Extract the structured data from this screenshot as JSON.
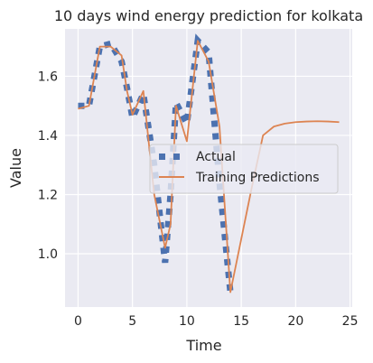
{
  "chart_data": {
    "type": "line",
    "title": "10 days wind energy prediction for kolkata",
    "xlabel": "Time",
    "ylabel": "Value",
    "xlim": [
      -1.2,
      25.2
    ],
    "ylim": [
      0.82,
      1.76
    ],
    "xticks": [
      0,
      5,
      10,
      15,
      20,
      25
    ],
    "yticks": [
      1.0,
      1.2,
      1.4,
      1.6
    ],
    "ytick_labels": [
      "1.0",
      "1.2",
      "1.4",
      "1.6"
    ],
    "grid": true,
    "legend_position": "center-right",
    "colors": {
      "background": "#eaeaf2",
      "grid": "#ffffff",
      "actual": "#4c72b0",
      "prediction": "#dd8452"
    },
    "series": [
      {
        "name": "Actual",
        "style": "dotted-square",
        "x": [
          0,
          1,
          2,
          3,
          4,
          4.5,
          5,
          6,
          7,
          8,
          8.5,
          9,
          10,
          11,
          12,
          13,
          14
        ],
        "y": [
          1.5,
          1.5,
          1.7,
          1.71,
          1.65,
          1.56,
          1.46,
          1.54,
          1.3,
          0.97,
          1.2,
          1.51,
          1.44,
          1.72,
          1.68,
          1.24,
          0.87
        ]
      },
      {
        "name": "Training Predictions",
        "style": "line",
        "x": [
          0,
          1,
          2,
          3,
          4,
          4.5,
          5,
          6,
          7,
          8,
          8.5,
          9,
          10,
          11,
          12,
          13,
          14,
          15,
          16,
          17,
          18,
          19,
          20,
          21,
          22,
          23,
          24
        ],
        "y": [
          1.49,
          1.5,
          1.7,
          1.7,
          1.67,
          1.55,
          1.47,
          1.55,
          1.2,
          1.02,
          1.1,
          1.5,
          1.38,
          1.72,
          1.65,
          1.43,
          0.87,
          1.05,
          1.23,
          1.4,
          1.43,
          1.44,
          1.445,
          1.447,
          1.448,
          1.447,
          1.445
        ]
      }
    ]
  }
}
